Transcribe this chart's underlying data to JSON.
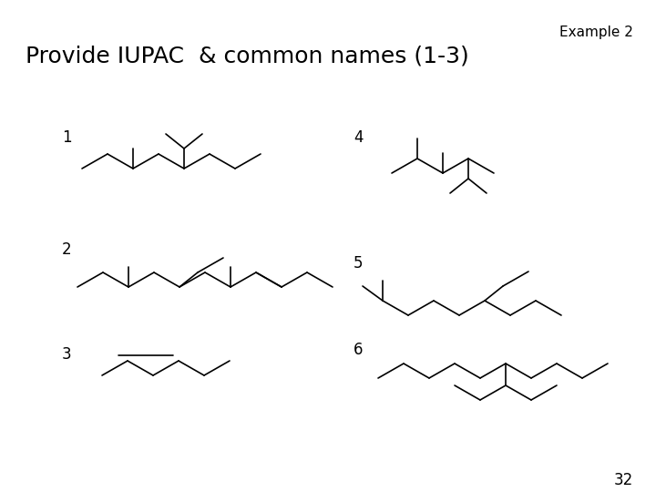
{
  "title": "Example 2",
  "subtitle": "Provide IUPAC  & common names (1-3)",
  "page_number": "32",
  "background_color": "#ffffff",
  "line_color": "#000000",
  "label_color": "#000000",
  "title_fontsize": 11,
  "subtitle_fontsize": 18,
  "number_fontsize": 12,
  "page_fontsize": 12
}
